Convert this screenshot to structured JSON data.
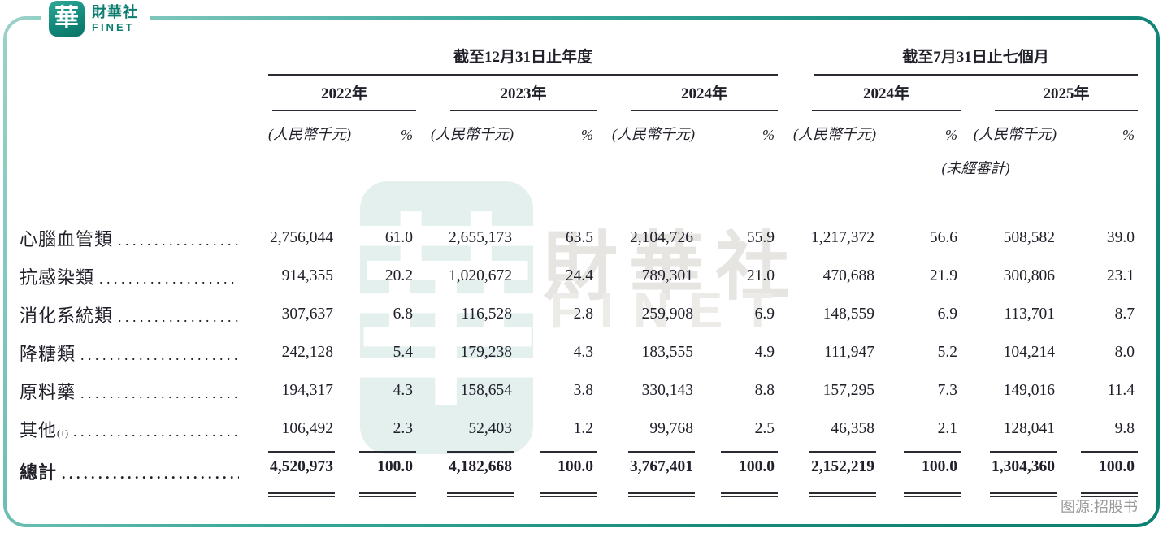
{
  "logo": {
    "mark": "華",
    "name_zh": "財華社",
    "name_en": "FINET"
  },
  "watermark": {
    "seal_char": "華",
    "text_zh": "財華社",
    "text_en": "FINET"
  },
  "table": {
    "group_headers": [
      {
        "label": "截至12月31日止年度"
      },
      {
        "label": "截至7月31日止七個月"
      }
    ],
    "year_headers": [
      "2022年",
      "2023年",
      "2024年",
      "2024年",
      "2025年"
    ],
    "unit_label": "(人民幣千元)",
    "pct_label": "%",
    "unaudited_label": "(未經審計)",
    "rows": [
      {
        "label": "心腦血管類",
        "sup": "",
        "values": [
          "2,756,044",
          "61.0",
          "2,655,173",
          "63.5",
          "2,104,726",
          "55.9",
          "1,217,372",
          "56.6",
          "508,582",
          "39.0"
        ]
      },
      {
        "label": "抗感染類",
        "sup": "",
        "values": [
          "914,355",
          "20.2",
          "1,020,672",
          "24.4",
          "789,301",
          "21.0",
          "470,688",
          "21.9",
          "300,806",
          "23.1"
        ]
      },
      {
        "label": "消化系統類",
        "sup": "",
        "values": [
          "307,637",
          "6.8",
          "116,528",
          "2.8",
          "259,908",
          "6.9",
          "148,559",
          "6.9",
          "113,701",
          "8.7"
        ]
      },
      {
        "label": "降糖類",
        "sup": "",
        "values": [
          "242,128",
          "5.4",
          "179,238",
          "4.3",
          "183,555",
          "4.9",
          "111,947",
          "5.2",
          "104,214",
          "8.0"
        ]
      },
      {
        "label": "原料藥",
        "sup": "",
        "values": [
          "194,317",
          "4.3",
          "158,654",
          "3.8",
          "330,143",
          "8.8",
          "157,295",
          "7.3",
          "149,016",
          "11.4"
        ]
      },
      {
        "label": "其他",
        "sup": "(1)",
        "values": [
          "106,492",
          "2.3",
          "52,403",
          "1.2",
          "99,768",
          "2.5",
          "46,358",
          "2.1",
          "128,041",
          "9.8"
        ]
      }
    ],
    "total_row": {
      "label": "總計",
      "values": [
        "4,520,973",
        "100.0",
        "4,182,668",
        "100.0",
        "3,767,401",
        "100.0",
        "2,152,219",
        "100.0",
        "1,304,360",
        "100.0"
      ]
    }
  },
  "footer": {
    "source": "图源:招股书"
  },
  "colors": {
    "brand_teal": "#0d8072",
    "watermark_teal": "#cde5e1",
    "text": "#20202a",
    "muted_gray": "#9b9b9b"
  }
}
